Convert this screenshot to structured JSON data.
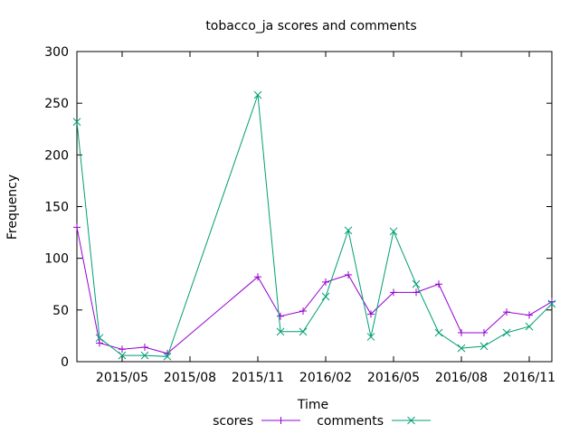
{
  "chart_data": {
    "type": "line",
    "title": "tobacco_ja scores and comments",
    "xlabel": "Time",
    "ylabel": "Frequency",
    "ylim": [
      0,
      300
    ],
    "yticks": [
      "0",
      "50",
      "100",
      "150",
      "200",
      "250",
      "300"
    ],
    "xlim": [
      "2015-03-01",
      "2016-12-01"
    ],
    "xticks": [
      {
        "label": "2015/05",
        "date": "2015-05-01"
      },
      {
        "label": "2015/08",
        "date": "2015-08-01"
      },
      {
        "label": "2015/11",
        "date": "2015-11-01"
      },
      {
        "label": "2016/02",
        "date": "2016-02-01"
      },
      {
        "label": "2016/05",
        "date": "2016-05-01"
      },
      {
        "label": "2016/08",
        "date": "2016-08-01"
      },
      {
        "label": "2016/11",
        "date": "2016-11-01"
      }
    ],
    "grid": false,
    "legend": "bottom",
    "series": [
      {
        "name": "scores",
        "color": "#9400d3",
        "marker": "plus",
        "points": [
          {
            "x": "2015-03-01",
            "y": 130
          },
          {
            "x": "2015-04-01",
            "y": 18
          },
          {
            "x": "2015-05-01",
            "y": 12
          },
          {
            "x": "2015-06-01",
            "y": 14
          },
          {
            "x": "2015-07-01",
            "y": 8
          },
          {
            "x": "2015-11-01",
            "y": 82
          },
          {
            "x": "2015-12-01",
            "y": 44
          },
          {
            "x": "2016-01-01",
            "y": 49
          },
          {
            "x": "2016-02-01",
            "y": 77
          },
          {
            "x": "2016-03-01",
            "y": 84
          },
          {
            "x": "2016-04-01",
            "y": 46
          },
          {
            "x": "2016-05-01",
            "y": 67
          },
          {
            "x": "2016-06-01",
            "y": 67
          },
          {
            "x": "2016-07-01",
            "y": 75
          },
          {
            "x": "2016-08-01",
            "y": 28
          },
          {
            "x": "2016-09-01",
            "y": 28
          },
          {
            "x": "2016-10-01",
            "y": 48
          },
          {
            "x": "2016-11-01",
            "y": 45
          },
          {
            "x": "2016-12-01",
            "y": 58
          }
        ]
      },
      {
        "name": "comments",
        "color": "#009e73",
        "marker": "cross",
        "points": [
          {
            "x": "2015-03-01",
            "y": 232
          },
          {
            "x": "2015-04-01",
            "y": 23
          },
          {
            "x": "2015-05-01",
            "y": 6
          },
          {
            "x": "2015-06-01",
            "y": 6
          },
          {
            "x": "2015-07-01",
            "y": 5
          },
          {
            "x": "2015-11-01",
            "y": 258
          },
          {
            "x": "2015-12-01",
            "y": 29
          },
          {
            "x": "2016-01-01",
            "y": 29
          },
          {
            "x": "2016-02-01",
            "y": 63
          },
          {
            "x": "2016-03-01",
            "y": 127
          },
          {
            "x": "2016-04-01",
            "y": 24
          },
          {
            "x": "2016-05-01",
            "y": 126
          },
          {
            "x": "2016-06-01",
            "y": 75
          },
          {
            "x": "2016-07-01",
            "y": 28
          },
          {
            "x": "2016-08-01",
            "y": 13
          },
          {
            "x": "2016-09-01",
            "y": 15
          },
          {
            "x": "2016-10-01",
            "y": 28
          },
          {
            "x": "2016-11-01",
            "y": 34
          },
          {
            "x": "2016-12-01",
            "y": 56
          }
        ]
      }
    ]
  }
}
